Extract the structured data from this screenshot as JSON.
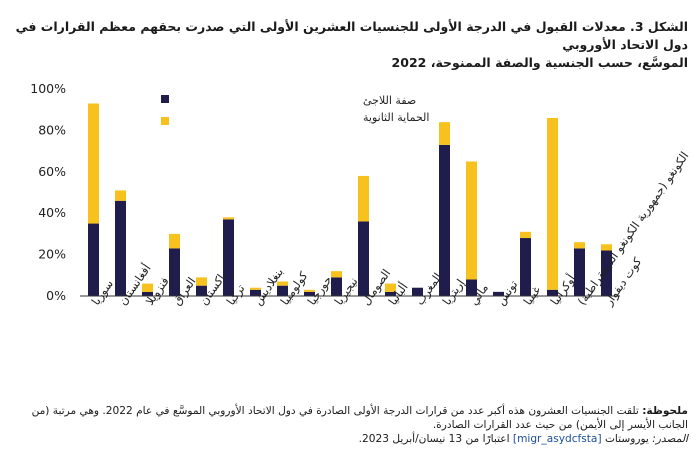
{
  "figure": {
    "title_line1": "الشكل 3. معدلات القبول في الدرجة الأولى للجنسيات العشرين الأولى التي صدرت بحقهم معظم القرارات في دول الاتحاد الأوروبي",
    "title_line2": "الموسَّع، حسب الجنسية والصفة الممنوحة، 2022",
    "note_label": "ملحوظة:",
    "note_text": "تلقت الجنسيات العشرون هذه أكبر عدد من قرارات الدرجة الأولى الصادرة في دول الاتحاد الأوروبي الموسَّع في عام 2022. وهي مرتبة (من الجانب الأيسر إلى الأيمن) من حيث عدد القرارات الصادرة.",
    "source_label": "المصدر:",
    "source_text": "يوروستات",
    "source_link": "[migr_asydcfsta]",
    "source_date": "اعتبارًا من 13 نيسان/أبريل 2023."
  },
  "colors": {
    "refugee": "#201d4d",
    "subsidiary": "#f7c21d",
    "axis": "#333333",
    "grid": "#ffffff"
  },
  "chart_data": {
    "type": "bar",
    "stacked": true,
    "categories": [
      "سوريا",
      "أفغانستان",
      "فنزويلا",
      "العراق",
      "باكستان",
      "تركيا",
      "بنغلاديش",
      "كولومبيا",
      "جورجيا",
      "نيجيريا",
      "الصومال",
      "ألبانيا",
      "المغرب",
      "إريتريا",
      "مالي",
      "تونس",
      "غينيا",
      "أوكرانيا",
      "الكونغو (جمهورية الكونغو الديمقراطية)",
      "كوت ديفوار"
    ],
    "series": [
      {
        "name": "صفة اللاجئ",
        "values": [
          35,
          46,
          2,
          23,
          5,
          37,
          3,
          5,
          2,
          9,
          36,
          2,
          4,
          73,
          8,
          2,
          28,
          3,
          23,
          22
        ]
      },
      {
        "name": "الحماية الثانوية",
        "values": [
          58,
          5,
          4,
          7,
          4,
          1,
          1,
          2,
          1,
          3,
          22,
          4,
          0,
          11,
          57,
          0,
          3,
          83,
          3,
          3
        ]
      }
    ],
    "yticks": [
      "0%",
      "20%",
      "40%",
      "60%",
      "80%",
      "100%"
    ],
    "ylim": [
      0,
      100
    ],
    "legend_position": "top-left"
  }
}
